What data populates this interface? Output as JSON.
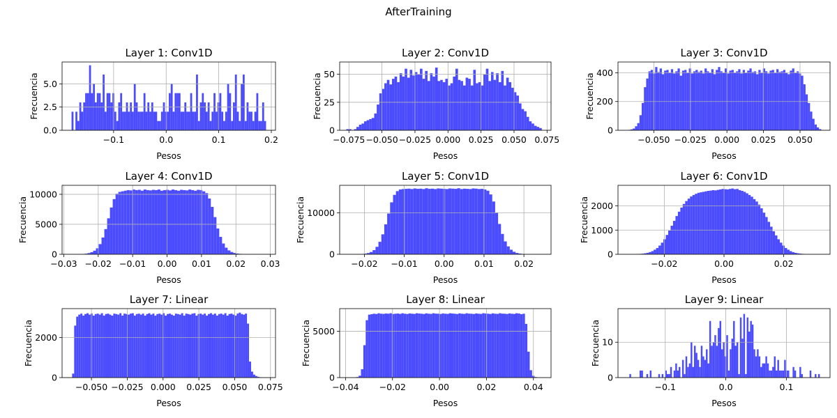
{
  "figure": {
    "suptitle": "AfterTraining",
    "bar_color": "#4c4cff",
    "grid_color": "#b0b0b0"
  },
  "chart_data": [
    {
      "type": "bar",
      "title": "Layer 1: Conv1D",
      "xlabel": "Pesos",
      "ylabel": "Frecuencia",
      "xlim": [
        -0.198,
        0.208
      ],
      "ylim": [
        0,
        7.35
      ],
      "xticks": [
        -0.1,
        0.0,
        0.1,
        0.2
      ],
      "xtick_labels": [
        "−0.1",
        "0.0",
        "0.1",
        "0.2"
      ],
      "yticks": [
        0,
        2.5,
        5.0
      ],
      "ytick_labels": [
        "0.0",
        "2.5",
        "5.0"
      ],
      "grid": true,
      "bin_range": [
        -0.18,
        0.19
      ],
      "values": [
        2,
        0,
        2,
        1,
        3,
        2,
        3,
        4,
        4,
        7,
        4,
        5,
        3,
        4,
        4,
        3,
        6,
        2,
        4,
        4,
        3,
        4,
        2,
        1,
        3,
        4,
        2,
        2,
        3,
        2,
        3,
        2,
        5,
        3,
        2,
        2,
        2,
        4,
        2,
        3,
        2,
        3,
        2,
        2,
        1,
        1,
        2,
        3,
        2,
        2,
        4,
        5,
        2,
        4,
        4,
        4,
        2,
        2,
        3,
        2,
        2,
        4,
        2,
        2,
        6,
        1,
        3,
        4,
        3,
        2,
        3,
        1,
        2,
        4,
        2,
        3,
        4,
        2,
        1,
        2,
        5,
        4,
        1,
        3,
        6,
        2,
        1,
        5,
        6,
        1,
        3,
        2,
        2,
        1,
        2,
        4,
        1,
        1,
        3,
        1
      ]
    },
    {
      "type": "bar",
      "title": "Layer 2: Conv1D",
      "xlabel": "Pesos",
      "ylabel": "Frecuencia",
      "xlim": [
        -0.082,
        0.078
      ],
      "ylim": [
        0,
        61
      ],
      "xticks": [
        -0.075,
        -0.05,
        -0.025,
        0.0,
        0.025,
        0.05,
        0.075
      ],
      "xtick_labels": [
        "−0.075",
        "−0.050",
        "−0.025",
        "0.000",
        "0.025",
        "0.050",
        "0.075"
      ],
      "yticks": [
        0,
        25,
        50
      ],
      "ytick_labels": [
        "0",
        "25",
        "50"
      ],
      "grid": true,
      "bin_range": [
        -0.077,
        0.071
      ],
      "values": [
        1,
        1,
        0,
        1,
        3,
        5,
        6,
        8,
        9,
        10,
        11,
        15,
        23,
        33,
        37,
        42,
        45,
        41,
        46,
        48,
        43,
        51,
        48,
        55,
        47,
        54,
        49,
        52,
        50,
        55,
        46,
        53,
        44,
        51,
        48,
        56,
        44,
        45,
        43,
        46,
        40,
        42,
        48,
        55,
        45,
        44,
        40,
        47,
        46,
        40,
        54,
        42,
        43,
        40,
        50,
        55,
        44,
        52,
        45,
        51,
        43,
        53,
        40,
        47,
        43,
        38,
        34,
        31,
        24,
        19,
        17,
        12,
        8,
        6,
        4,
        3,
        2
      ]
    },
    {
      "type": "bar",
      "title": "Layer 3: Conv1D",
      "xlabel": "Pesos",
      "ylabel": "Frecuencia",
      "xlim": [
        -0.0745,
        0.0705
      ],
      "ylim": [
        0,
        475
      ],
      "xticks": [
        -0.05,
        -0.025,
        0.0,
        0.025,
        0.05
      ],
      "xtick_labels": [
        "−0.050",
        "−0.025",
        "0.000",
        "0.025",
        "0.050"
      ],
      "yticks": [
        0,
        200,
        400
      ],
      "ytick_labels": [
        "0",
        "200",
        "400"
      ],
      "grid": true,
      "bin_range": [
        -0.0675,
        0.0645
      ],
      "values": [
        3,
        6,
        12,
        28,
        50,
        105,
        190,
        300,
        360,
        410,
        420,
        395,
        440,
        405,
        430,
        390,
        415,
        420,
        400,
        425,
        395,
        410,
        430,
        380,
        415,
        420,
        400,
        430,
        395,
        410,
        420,
        405,
        415,
        395,
        430,
        410,
        400,
        425,
        390,
        420,
        440,
        410,
        400,
        430,
        395,
        415,
        420,
        400,
        410,
        425,
        395,
        420,
        400,
        415,
        430,
        405,
        410,
        390,
        420,
        400,
        430,
        410,
        395,
        415,
        420,
        400,
        425,
        405,
        410,
        420,
        400,
        390,
        415,
        430,
        400,
        410,
        395,
        380,
        320,
        250,
        190,
        130,
        80,
        40,
        20,
        8
      ]
    },
    {
      "type": "bar",
      "title": "Layer 4: Conv1D",
      "xlabel": "Pesos",
      "ylabel": "Frecuencia",
      "xlim": [
        -0.0305,
        0.0315
      ],
      "ylim": [
        0,
        11500
      ],
      "xticks": [
        -0.03,
        -0.02,
        -0.01,
        0.0,
        0.01,
        0.02,
        0.03
      ],
      "xtick_labels": [
        "−0.03",
        "−0.02",
        "−0.01",
        "0.00",
        "0.01",
        "0.02",
        "0.03"
      ],
      "yticks": [
        0,
        5000,
        10000
      ],
      "ytick_labels": [
        "0",
        "5000",
        "10000"
      ],
      "grid": true,
      "bin_range": [
        -0.028,
        0.029
      ],
      "values": [
        5,
        10,
        20,
        30,
        60,
        100,
        200,
        350,
        600,
        1000,
        1700,
        2800,
        4200,
        6000,
        7800,
        9200,
        10100,
        10400,
        10500,
        10600,
        10700,
        10650,
        10800,
        10700,
        10750,
        10600,
        10800,
        10700,
        10650,
        10750,
        10700,
        10800,
        10600,
        10700,
        10750,
        10650,
        10800,
        10700,
        10600,
        10750,
        10700,
        10650,
        10800,
        10700,
        10600,
        10750,
        10700,
        10500,
        10200,
        9300,
        7900,
        6200,
        4300,
        2900,
        1800,
        1100,
        650,
        380,
        220,
        120,
        70,
        40,
        25,
        15,
        10,
        5,
        5,
        3,
        2,
        2
      ]
    },
    {
      "type": "bar",
      "title": "Layer 5: Conv1D",
      "xlabel": "Pesos",
      "ylabel": "Frecuencia",
      "xlim": [
        -0.0262,
        0.0268
      ],
      "ylim": [
        0,
        16600
      ],
      "xticks": [
        -0.02,
        -0.01,
        0.0,
        0.01,
        0.02
      ],
      "xtick_labels": [
        "−0.02",
        "−0.01",
        "0.00",
        "0.01",
        "0.02"
      ],
      "yticks": [
        0,
        10000
      ],
      "ytick_labels": [
        "0",
        "10000"
      ],
      "grid": true,
      "bin_range": [
        -0.0238,
        0.0245
      ],
      "values": [
        5,
        10,
        20,
        40,
        80,
        150,
        300,
        550,
        1000,
        1800,
        3000,
        4800,
        7200,
        9800,
        12500,
        14300,
        15200,
        15600,
        15700,
        15750,
        15800,
        15700,
        15850,
        15750,
        15800,
        15700,
        15900,
        15750,
        15800,
        15700,
        15850,
        15800,
        15750,
        15700,
        15850,
        15800,
        15750,
        15900,
        15700,
        15800,
        15750,
        15700,
        15850,
        15800,
        15700,
        15750,
        15600,
        15300,
        14400,
        12700,
        10000,
        7300,
        4900,
        3100,
        1900,
        1100,
        600,
        320,
        170,
        90,
        45,
        25,
        12,
        6,
        3,
        2
      ]
    },
    {
      "type": "bar",
      "title": "Layer 6: Conv1D",
      "xlabel": "Pesos",
      "ylabel": "Frecuencia",
      "xlim": [
        -0.0355,
        0.0355
      ],
      "ylim": [
        0,
        2850
      ],
      "xticks": [
        -0.02,
        0.0,
        0.02
      ],
      "xtick_labels": [
        "−0.02",
        "0.00",
        "0.02"
      ],
      "yticks": [
        0,
        1000,
        2000
      ],
      "ytick_labels": [
        "0",
        "1000",
        "2000"
      ],
      "grid": true,
      "bin_range": [
        -0.0325,
        0.0325
      ],
      "values": [
        2,
        3,
        5,
        8,
        12,
        18,
        25,
        40,
        60,
        90,
        130,
        190,
        260,
        360,
        480,
        620,
        800,
        980,
        1180,
        1380,
        1580,
        1760,
        1930,
        2080,
        2200,
        2300,
        2390,
        2450,
        2500,
        2540,
        2560,
        2580,
        2600,
        2620,
        2630,
        2650,
        2640,
        2660,
        2680,
        2700,
        2690,
        2680,
        2700,
        2720,
        2690,
        2700,
        2650,
        2620,
        2580,
        2520,
        2450,
        2380,
        2280,
        2180,
        2050,
        1900,
        1720,
        1540,
        1340,
        1140,
        950,
        780,
        620,
        480,
        360,
        260,
        190,
        130,
        90,
        60,
        40,
        28,
        18,
        12,
        8,
        6,
        4,
        3,
        2,
        2
      ]
    },
    {
      "type": "bar",
      "title": "Layer 7: Linear",
      "xlabel": "Pesos",
      "ylabel": "Frecuencia",
      "xlim": [
        -0.0705,
        0.0785
      ],
      "ylim": [
        0,
        3450
      ],
      "xticks": [
        -0.05,
        -0.025,
        0.0,
        0.025,
        0.05,
        0.075
      ],
      "xtick_labels": [
        "−0.050",
        "−0.025",
        "0.000",
        "0.025",
        "0.050",
        "0.075"
      ],
      "yticks": [
        0,
        2000
      ],
      "ytick_labels": [
        "0",
        "2000"
      ],
      "grid": true,
      "bin_range": [
        -0.0635,
        0.0715
      ],
      "values": [
        200,
        2600,
        3050,
        3150,
        3200,
        3100,
        3180,
        3220,
        3150,
        3200,
        3100,
        3180,
        3200,
        3150,
        3220,
        3100,
        3180,
        3200,
        3150,
        3100,
        3200,
        3180,
        3150,
        3220,
        3100,
        3200,
        3180,
        3150,
        3200,
        3220,
        3100,
        3180,
        3200,
        3150,
        3200,
        3100,
        3180,
        3220,
        3150,
        3200,
        3100,
        3180,
        3200,
        3150,
        3220,
        3100,
        3180,
        3200,
        3150,
        3100,
        3200,
        3180,
        3150,
        3220,
        3100,
        3200,
        3180,
        3150,
        3200,
        3220,
        3100,
        3180,
        3200,
        3150,
        3200,
        3100,
        3180,
        3220,
        3150,
        3200,
        3100,
        3180,
        3200,
        3150,
        3220,
        3100,
        3180,
        3200,
        3150,
        3100,
        3200,
        3250,
        3180,
        3150,
        3200,
        2700,
        800,
        300,
        150,
        80,
        40,
        20,
        10,
        5
      ]
    },
    {
      "type": "bar",
      "title": "Layer 8: Linear",
      "xlabel": "Pesos",
      "ylabel": "Frecuencia",
      "xlim": [
        -0.0425,
        0.0475
      ],
      "ylim": [
        0,
        7450
      ],
      "xticks": [
        -0.04,
        -0.02,
        0.0,
        0.02,
        0.04
      ],
      "xtick_labels": [
        "−0.04",
        "−0.02",
        "0.00",
        "0.02",
        "0.04"
      ],
      "yticks": [
        0,
        5000
      ],
      "ytick_labels": [
        "0",
        "5000"
      ],
      "grid": true,
      "bin_range": [
        -0.0385,
        0.0445
      ],
      "values": [
        5,
        10,
        20,
        60,
        200,
        900,
        3500,
        6200,
        6800,
        6850,
        6900,
        6870,
        6950,
        6900,
        6880,
        6920,
        6900,
        6950,
        6870,
        6900,
        6920,
        6880,
        6950,
        6900,
        6870,
        6930,
        6900,
        6880,
        6950,
        6920,
        6900,
        6870,
        6940,
        6900,
        6880,
        6950,
        6910,
        6900,
        6870,
        6930,
        6900,
        6880,
        6950,
        6920,
        6900,
        6870,
        6940,
        6900,
        6880,
        6950,
        6910,
        6900,
        6870,
        6930,
        6900,
        6880,
        6950,
        6920,
        6900,
        6870,
        6940,
        6900,
        6880,
        6950,
        6910,
        6900,
        6870,
        6930,
        6900,
        6880,
        6950,
        6920,
        6850,
        6900,
        5800,
        2800,
        800,
        200,
        60,
        20,
        10,
        5
      ]
    },
    {
      "type": "bar",
      "title": "Layer 9: Linear",
      "xlabel": "Pesos",
      "ylabel": "Frecuencia",
      "xlim": [
        -0.178,
        0.172
      ],
      "ylim": [
        0,
        19.5
      ],
      "xticks": [
        -0.1,
        0.0,
        0.1
      ],
      "xtick_labels": [
        "−0.1",
        "0.0",
        "0.1"
      ],
      "yticks": [
        0,
        10
      ],
      "ytick_labels": [
        "0",
        "10"
      ],
      "grid": true,
      "bin_range": [
        -0.162,
        0.158
      ],
      "values": [
        0,
        1,
        0,
        0,
        0,
        0,
        0,
        2,
        2,
        0,
        0,
        1,
        0,
        2,
        0,
        0,
        0,
        0,
        1,
        0,
        1,
        0,
        2,
        1,
        1,
        3,
        0,
        2,
        4,
        2,
        3,
        0,
        5,
        1,
        6,
        3,
        4,
        10,
        3,
        9,
        7,
        5,
        3,
        9,
        6,
        5,
        8,
        4,
        16,
        9,
        10,
        12,
        9,
        14,
        16,
        8,
        10,
        6,
        12,
        2,
        8,
        11,
        16,
        9,
        10,
        1,
        17,
        11,
        18,
        1,
        17,
        13,
        16,
        15,
        8,
        6,
        8,
        6,
        3,
        4,
        4,
        6,
        4,
        2,
        2,
        3,
        6,
        2,
        5,
        2,
        2,
        2,
        5,
        2,
        2,
        0,
        0,
        3,
        2,
        0,
        0,
        3,
        1,
        0,
        0,
        0,
        0,
        2,
        0,
        0,
        1,
        0,
        1,
        0
      ]
    }
  ]
}
